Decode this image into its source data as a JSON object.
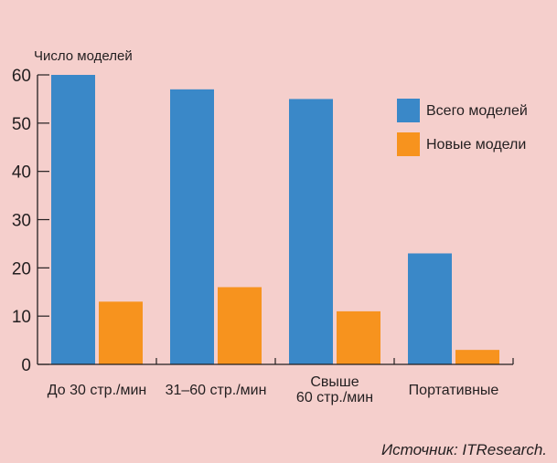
{
  "chart_data": {
    "type": "bar",
    "title": "",
    "ylabel": "Число моделей",
    "xlabel": "",
    "ylim": [
      0,
      60
    ],
    "yticks": [
      0,
      10,
      20,
      30,
      40,
      50,
      60
    ],
    "categories": [
      [
        "До 30 стр./мин"
      ],
      [
        "31–60 стр./мин"
      ],
      [
        "Свыше",
        "60 стр./мин"
      ],
      [
        "Портативные"
      ]
    ],
    "series": [
      {
        "name": "Всего моделей",
        "color": "#3a88c8",
        "values": [
          60,
          57,
          55,
          23
        ]
      },
      {
        "name": "Новые модели",
        "color": "#f7931e",
        "values": [
          13,
          16,
          11,
          3
        ]
      }
    ],
    "legend": "top-right",
    "grid": false,
    "source": "Источник: ITResearch."
  }
}
